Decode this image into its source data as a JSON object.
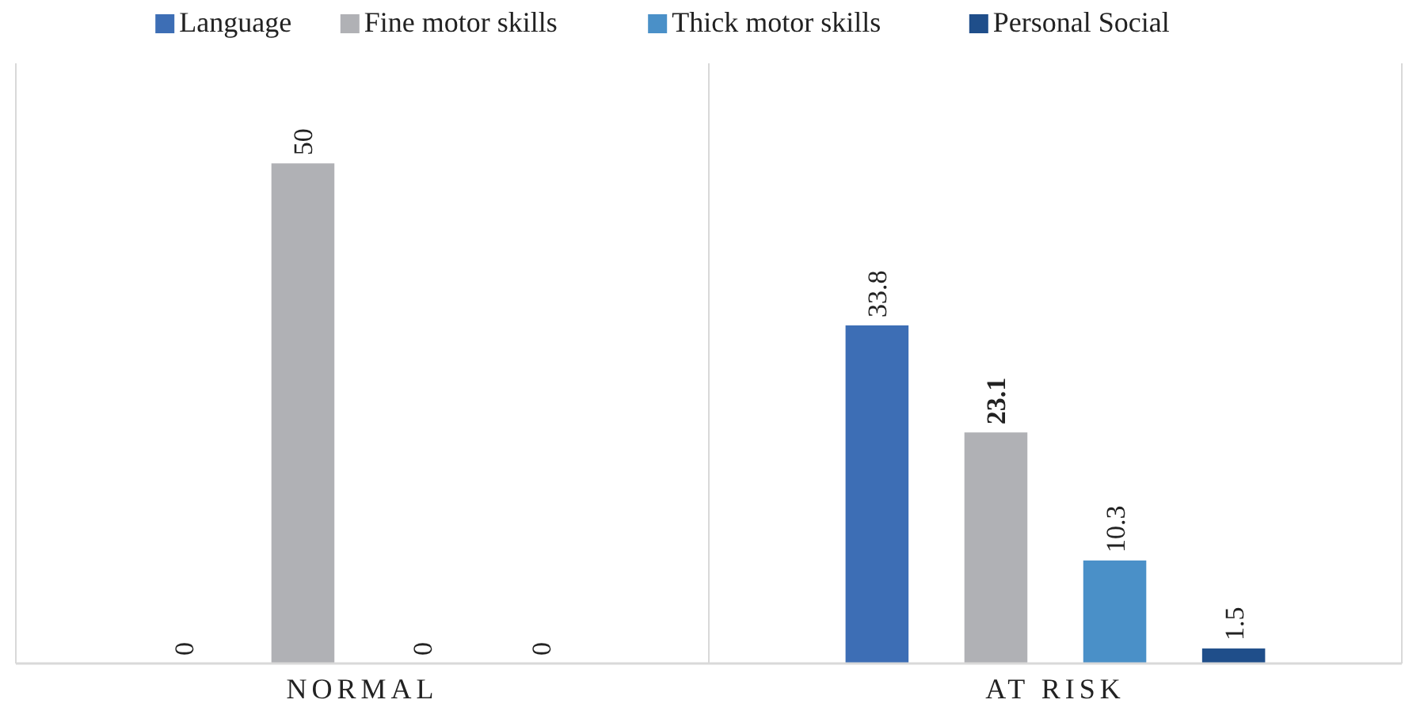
{
  "chart_data": {
    "type": "bar",
    "categories": [
      "NORMAL",
      "AT RISK"
    ],
    "series": [
      {
        "name": "Language",
        "color": "#3d6eb5",
        "values": [
          0,
          33.8
        ]
      },
      {
        "name": "Fine motor skills",
        "color": "#b0b1b5",
        "values": [
          50,
          23.1
        ]
      },
      {
        "name": "Thick motor skills",
        "color": "#4a90c8",
        "values": [
          0,
          10.3
        ]
      },
      {
        "name": "Personal Social",
        "color": "#1f4e8a",
        "values": [
          0,
          1.5
        ]
      }
    ],
    "ylim": [
      0,
      60
    ],
    "tick_labels": "x",
    "data_labels": true,
    "legend": "top"
  }
}
